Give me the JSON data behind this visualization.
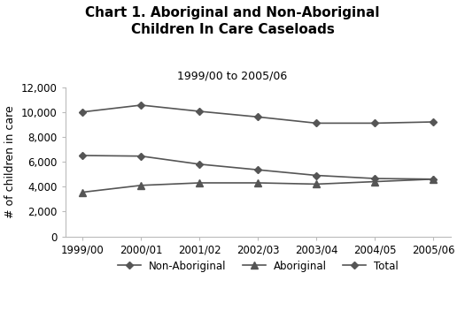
{
  "title_line1": "Chart 1. Aboriginal and Non-Aboriginal",
  "title_line2": "Children In Care Caseloads",
  "subtitle": "1999/00 to 2005/06",
  "ylabel": "# of children in care",
  "x_labels": [
    "1999/00",
    "2000/01",
    "2001/02",
    "2002/03",
    "2003/04",
    "2004/05",
    "2005/06"
  ],
  "non_aboriginal": [
    6500,
    6450,
    5800,
    5350,
    4900,
    4650,
    4600
  ],
  "aboriginal": [
    3550,
    4100,
    4300,
    4300,
    4200,
    4400,
    4600
  ],
  "total": [
    10000,
    10550,
    10050,
    9600,
    9100,
    9100,
    9200
  ],
  "ylim": [
    0,
    12000
  ],
  "yticks": [
    0,
    2000,
    4000,
    6000,
    8000,
    10000,
    12000
  ],
  "line_color": "#555555",
  "background_color": "#ffffff",
  "legend_labels": [
    "Non-Aboriginal",
    "Aboriginal",
    "Total"
  ],
  "title_fontsize": 11,
  "subtitle_fontsize": 9,
  "axis_label_fontsize": 9,
  "tick_fontsize": 8.5,
  "legend_fontsize": 8.5
}
